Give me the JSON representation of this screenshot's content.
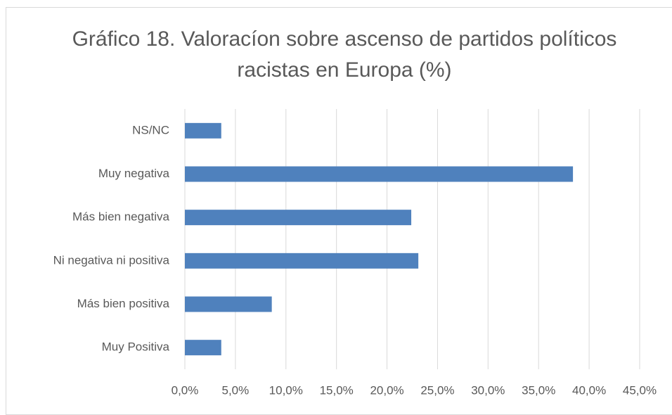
{
  "chart_data": {
    "type": "bar",
    "orientation": "horizontal",
    "title": "Gráfico 18. Valoracíon sobre ascenso de partidos políticos racistas en Europa (%)",
    "categories": [
      "NS/NC",
      "Muy negativa",
      "Más bien negativa",
      "Ni negativa ni positiva",
      "Más bien positiva",
      "Muy Positiva"
    ],
    "values": [
      3.6,
      38.4,
      22.4,
      23.1,
      8.6,
      3.6
    ],
    "color": "#4f81bd",
    "xlim": [
      0,
      45
    ],
    "xticks": [
      {
        "value": 0,
        "label": "0,0%"
      },
      {
        "value": 5,
        "label": "5,0%"
      },
      {
        "value": 10,
        "label": "10,0%"
      },
      {
        "value": 15,
        "label": "15,0%"
      },
      {
        "value": 20,
        "label": "20,0%"
      },
      {
        "value": 25,
        "label": "25,0%"
      },
      {
        "value": 30,
        "label": "30,0%"
      },
      {
        "value": 35,
        "label": "35,0%"
      },
      {
        "value": 40,
        "label": "40,0%"
      },
      {
        "value": 45,
        "label": "45,0%"
      }
    ],
    "grid": true
  }
}
